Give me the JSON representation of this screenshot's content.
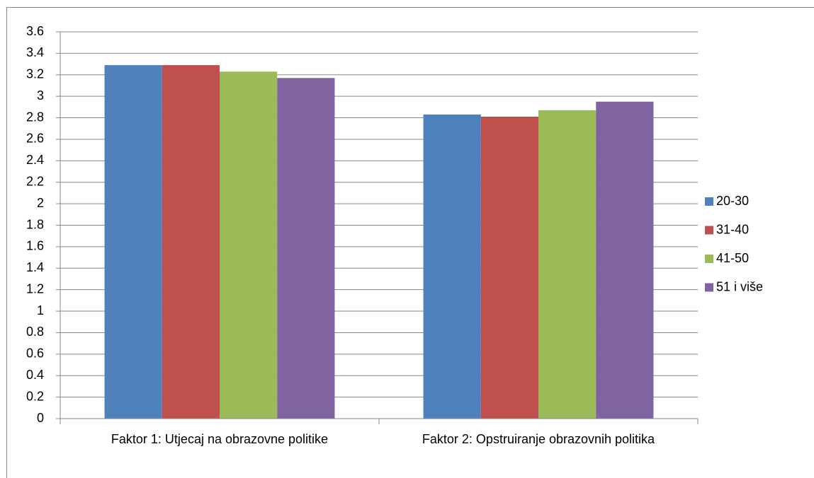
{
  "chart_data": {
    "type": "bar",
    "categories": [
      "Faktor 1: Utjecaj na obrazovne politike",
      "Faktor 2: Opstruiranje obrazovnih politika"
    ],
    "series": [
      {
        "name": "20-30",
        "color": "#4f81bd",
        "values": [
          3.29,
          2.83
        ]
      },
      {
        "name": "31-40",
        "color": "#c0504d",
        "values": [
          3.29,
          2.81
        ]
      },
      {
        "name": "41-50",
        "color": "#9bbb59",
        "values": [
          3.23,
          2.87
        ]
      },
      {
        "name": "51 i više",
        "color": "#8064a2",
        "values": [
          3.17,
          2.95
        ]
      }
    ],
    "ylim": [
      0,
      3.6
    ],
    "yticks": [
      0,
      0.2,
      0.4,
      0.6,
      0.8,
      1,
      1.2,
      1.4,
      1.6,
      1.8,
      2,
      2.2,
      2.4,
      2.6,
      2.8,
      3,
      3.2,
      3.4,
      3.6
    ],
    "grid": true,
    "legend": "right"
  }
}
